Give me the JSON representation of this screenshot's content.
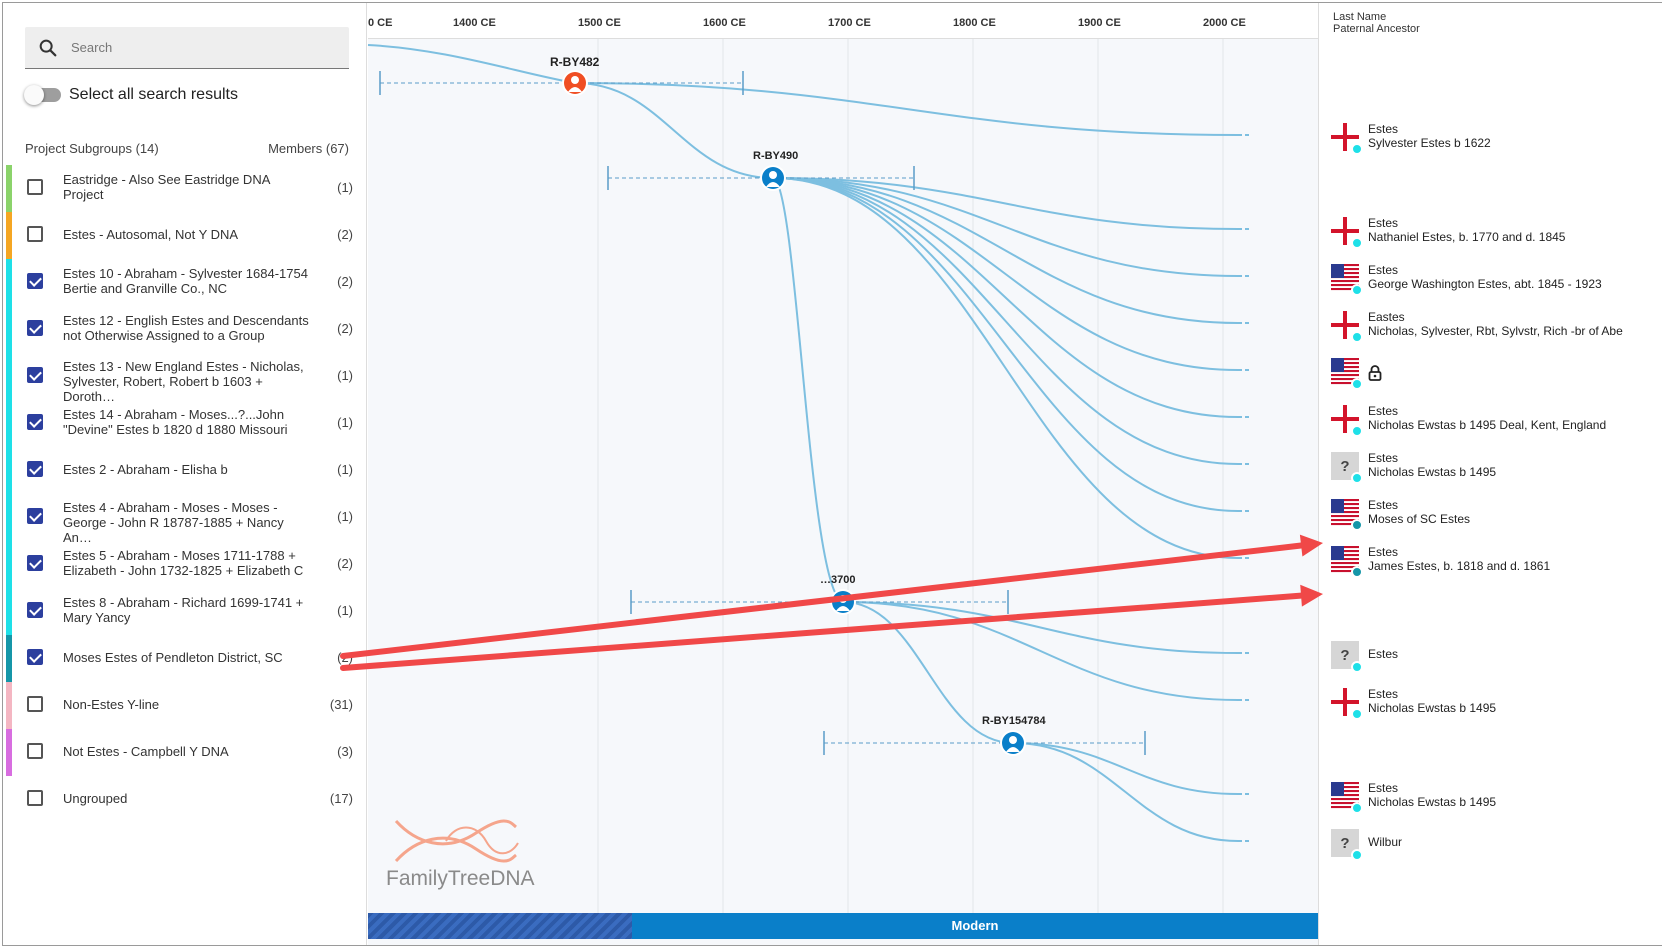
{
  "search": {
    "placeholder": "Search"
  },
  "select_all": {
    "label": "Select all search results"
  },
  "subgroups": {
    "header": "Project Subgroups (14)",
    "members_header": "Members (67)",
    "items": [
      {
        "label": "Eastridge - Also See Eastridge DNA Project",
        "count": "(1)",
        "checked": false,
        "color": "#8bd36b"
      },
      {
        "label": "Estes - Autosomal, Not Y DNA",
        "count": "(2)",
        "checked": false,
        "color": "#f5a623"
      },
      {
        "label": "Estes 10 - Abraham - Sylvester 1684-1754 Bertie and Granville Co., NC",
        "count": "(2)",
        "checked": true,
        "color": "#1ee0e8"
      },
      {
        "label": "Estes 12 - English Estes and Descendants not Otherwise Assigned to a Group",
        "count": "(2)",
        "checked": true,
        "color": "#1ee0e8"
      },
      {
        "label": "Estes 13 - New England Estes - Nicholas, Sylvester, Robert, Robert b 1603 + Doroth…",
        "count": "(1)",
        "checked": true,
        "color": "#1ee0e8"
      },
      {
        "label": "Estes 14 - Abraham - Moses...?...John \"Devine\" Estes b 1820 d 1880 Missouri",
        "count": "(1)",
        "checked": true,
        "color": "#1ee0e8"
      },
      {
        "label": "Estes 2 - Abraham - Elisha b",
        "count": "(1)",
        "checked": true,
        "color": "#1ee0e8"
      },
      {
        "label": "Estes 4 - Abraham - Moses - Moses - George - John R 18787-1885 + Nancy An…",
        "count": "(1)",
        "checked": true,
        "color": "#1ee0e8"
      },
      {
        "label": "Estes 5 - Abraham - Moses 1711-1788 + Elizabeth - John 1732-1825 + Elizabeth C",
        "count": "(2)",
        "checked": true,
        "color": "#1ee0e8"
      },
      {
        "label": "Estes 8 - Abraham - Richard 1699-1741 + Mary Yancy",
        "count": "(1)",
        "checked": true,
        "color": "#1ee0e8"
      },
      {
        "label": "Moses Estes of Pendleton District, SC",
        "count": "(2)",
        "checked": true,
        "color": "#1596a8"
      },
      {
        "label": "Non-Estes Y-line",
        "count": "(31)",
        "checked": false,
        "color": "#f4b6c2"
      },
      {
        "label": "Not Estes - Campbell Y DNA",
        "count": "(3)",
        "checked": false,
        "color": "#d86de0"
      },
      {
        "label": "Ungrouped",
        "count": "(17)",
        "checked": false,
        "color": ""
      }
    ]
  },
  "timeline": {
    "ticks": [
      "0 CE",
      "1400 CE",
      "1500 CE",
      "1600 CE",
      "1700 CE",
      "1800 CE",
      "1900 CE",
      "2000 CE"
    ],
    "nodes": [
      {
        "label": "R-BY482",
        "color": "#f04e23"
      },
      {
        "label": "R-BY490",
        "color": "#0a7fc9"
      },
      {
        "label": "…3700",
        "color": "#0a7fc9"
      },
      {
        "label": "R-BY154784",
        "color": "#0a7fc9"
      }
    ],
    "era_label": "Modern",
    "logo_text": "FamilyTreeDNA"
  },
  "right_panel": {
    "header_line1": "Last Name",
    "header_line2": "Paternal Ancestor",
    "leaves": [
      {
        "flag": "england",
        "last_name": "Estes",
        "ancestor": "Sylvester Estes b 1622"
      },
      {
        "flag": "england",
        "last_name": "Estes",
        "ancestor": "Nathaniel Estes, b. 1770 and d. 1845"
      },
      {
        "flag": "usa",
        "last_name": "Estes",
        "ancestor": "George Washington Estes, abt. 1845 - 1923"
      },
      {
        "flag": "england",
        "last_name": "Eastes",
        "ancestor": "Nicholas, Sylvester, Rbt, Sylvstr, Rich -br of Abe"
      },
      {
        "flag": "usa",
        "last_name": "",
        "ancestor": "",
        "locked": true
      },
      {
        "flag": "england",
        "last_name": "Estes",
        "ancestor": "Nicholas Ewstas b 1495 Deal, Kent, England"
      },
      {
        "flag": "unknown",
        "last_name": "Estes",
        "ancestor": "Nicholas Ewstas b 1495"
      },
      {
        "flag": "usa",
        "last_name": "Estes",
        "ancestor": "Moses of SC Estes"
      },
      {
        "flag": "usa",
        "last_name": "Estes",
        "ancestor": "James Estes, b. 1818 and d. 1861"
      },
      {
        "flag": "unknown",
        "last_name": "Estes",
        "ancestor": ""
      },
      {
        "flag": "england",
        "last_name": "Estes",
        "ancestor": "Nicholas Ewstas b 1495"
      },
      {
        "flag": "usa",
        "last_name": "Estes",
        "ancestor": "Nicholas Ewstas b 1495"
      },
      {
        "flag": "unknown",
        "last_name": "Wilbur",
        "ancestor": ""
      }
    ]
  },
  "colors": {
    "accent": "#0a7fc9",
    "root_node": "#f04e23",
    "branch_line": "#7dbfe0",
    "annotation_arrow": "#f04848",
    "checkbox_checked": "#2c3f9e"
  }
}
